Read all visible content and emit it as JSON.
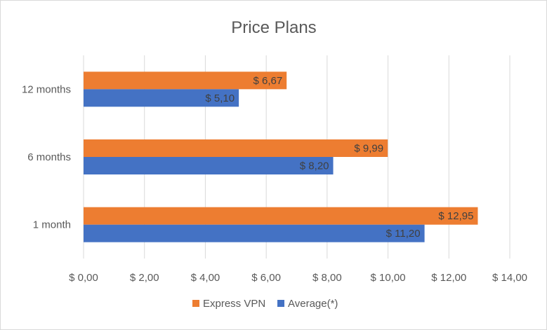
{
  "chart_data": {
    "type": "bar",
    "orientation": "horizontal",
    "title": "Price Plans",
    "categories": [
      "1 month",
      "6 months",
      "12 months"
    ],
    "series": [
      {
        "name": "Express VPN",
        "color": "#ED7D31",
        "values": [
          12.95,
          9.99,
          6.67
        ],
        "labels": [
          "$ 12,95",
          "$ 9,99",
          "$ 6,67"
        ]
      },
      {
        "name": "Average(*)",
        "color": "#4472C4",
        "values": [
          11.2,
          8.2,
          5.1
        ],
        "labels": [
          "$ 11,20",
          "$ 8,20",
          "$ 5,10"
        ]
      }
    ],
    "xlim": [
      0,
      14
    ],
    "xticks": [
      0,
      2,
      4,
      6,
      8,
      10,
      12,
      14
    ],
    "xtick_labels": [
      "$ 0,00",
      "$ 2,00",
      "$ 4,00",
      "$ 6,00",
      "$ 8,00",
      "$ 10,00",
      "$ 12,00",
      "$ 14,00"
    ],
    "grid": true,
    "legend_position": "bottom"
  },
  "colors": {
    "gridline": "#d9d9d9",
    "text": "#595959"
  }
}
